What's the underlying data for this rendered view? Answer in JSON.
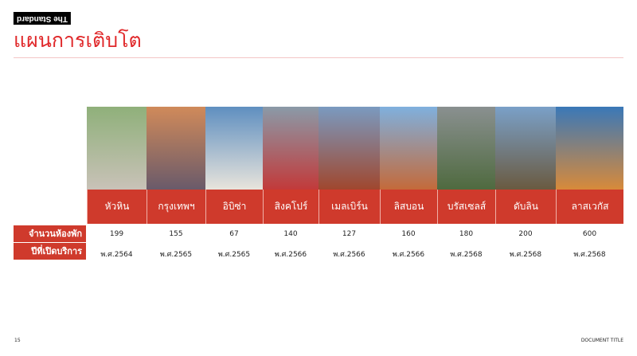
{
  "brand": {
    "logo": "The Standard"
  },
  "title": "แผนการเติบโต",
  "row_labels": {
    "rooms": "จำนวนห้องพัก",
    "opening": "ปีที่เปิดบริการ"
  },
  "locations": [
    {
      "name": "หัวหิน",
      "rooms": "199",
      "year": "พ.ศ.2564",
      "photo": "hua-hin-hotel-photo"
    },
    {
      "name": "กรุงเทพฯ",
      "rooms": "155",
      "year": "พ.ศ.2565",
      "photo": "bangkok-tower-photo"
    },
    {
      "name": "อิบิซ่า",
      "rooms": "67",
      "year": "พ.ศ.2565",
      "photo": "ibiza-hotel-photo"
    },
    {
      "name": "สิงคโปร์",
      "rooms": "140",
      "year": "พ.ศ.2566",
      "photo": "singapore-hotel-photo"
    },
    {
      "name": "เมลเบิร์น",
      "rooms": "127",
      "year": "พ.ศ.2566",
      "photo": "melbourne-building-photo"
    },
    {
      "name": "ลิสบอน",
      "rooms": "160",
      "year": "พ.ศ.2566",
      "photo": "lisbon-city-photo"
    },
    {
      "name": "บรัสเซลส์",
      "rooms": "180",
      "year": "พ.ศ.2568",
      "photo": "brussels-city-photo"
    },
    {
      "name": "ดับลิน",
      "rooms": "200",
      "year": "พ.ศ.2568",
      "photo": "dublin-river-photo"
    },
    {
      "name": "ลาสเวกัส",
      "rooms": "600",
      "year": "พ.ศ.2568",
      "photo": "las-vegas-sign-photo"
    }
  ],
  "footer": {
    "page": "15",
    "doc_title": "DOCUMENT TITLE"
  },
  "colors": {
    "accent": "#cf3a2c",
    "title": "#e0282a"
  }
}
